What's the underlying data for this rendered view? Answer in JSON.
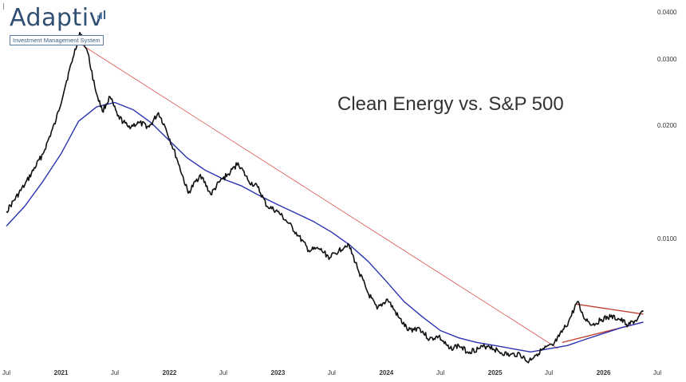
{
  "logo": {
    "word": "Adaptiv",
    "subtitle": "Investment Management System"
  },
  "colors": {
    "price": "#111111",
    "moving_average": "#2b32b2",
    "long_trendline": "#d9534f",
    "triangle": "#c0392b",
    "brand": "#2f4f73"
  },
  "chart_data": {
    "type": "line",
    "title": "Clean Energy vs. S&P 500",
    "y_scale": "log",
    "ylim": [
      0.0047,
      0.041
    ],
    "y_ticks": [
      {
        "value": 0.04,
        "label": "0.0400"
      },
      {
        "value": 0.03,
        "label": "0.0300"
      },
      {
        "value": 0.02,
        "label": "0.0200"
      },
      {
        "value": 0.01,
        "label": "0.0100"
      }
    ],
    "xlim": [
      "2020-07-01",
      "2026-07-01"
    ],
    "x_ticks": [
      {
        "value": "2020-07-01",
        "label": "Jul"
      },
      {
        "value": "2021-01-01",
        "label": "2021"
      },
      {
        "value": "2021-07-01",
        "label": "Jul"
      },
      {
        "value": "2022-01-01",
        "label": "2022"
      },
      {
        "value": "2022-07-01",
        "label": "Jul"
      },
      {
        "value": "2023-01-01",
        "label": "2023"
      },
      {
        "value": "2023-07-01",
        "label": "Jul"
      },
      {
        "value": "2024-01-01",
        "label": "2024"
      },
      {
        "value": "2024-07-01",
        "label": "Jul"
      },
      {
        "value": "2025-01-01",
        "label": "2025"
      },
      {
        "value": "2025-07-01",
        "label": "Jul"
      },
      {
        "value": "2026-01-01",
        "label": "2026"
      },
      {
        "value": "2026-07-01",
        "label": "Jul"
      }
    ],
    "series": [
      {
        "role": "price",
        "x": [
          "2020-07-01",
          "2020-09-01",
          "2020-11-01",
          "2020-12-15",
          "2021-01-20",
          "2021-02-10",
          "2021-03-05",
          "2021-04-01",
          "2021-04-25",
          "2021-05-20",
          "2021-06-15",
          "2021-07-10",
          "2021-08-15",
          "2021-09-20",
          "2021-10-25",
          "2021-11-25",
          "2021-12-20",
          "2022-01-25",
          "2022-03-05",
          "2022-04-15",
          "2022-05-20",
          "2022-06-20",
          "2022-07-25",
          "2022-08-20",
          "2022-09-25",
          "2022-10-25",
          "2022-11-25",
          "2022-12-31",
          "2023-02-05",
          "2023-03-10",
          "2023-04-15",
          "2023-05-20",
          "2023-06-25",
          "2023-07-25",
          "2023-08-25",
          "2023-09-25",
          "2023-10-30",
          "2023-12-01",
          "2024-01-05",
          "2024-02-10",
          "2024-03-15",
          "2024-04-20",
          "2024-05-25",
          "2024-06-25",
          "2024-07-30",
          "2024-09-01",
          "2024-10-01",
          "2024-11-05",
          "2024-12-10",
          "2025-01-15",
          "2025-02-20",
          "2025-03-25",
          "2025-04-20",
          "2025-05-15",
          "2025-06-15",
          "2025-07-15",
          "2025-08-05",
          "2025-09-05",
          "2025-10-05",
          "2025-10-25",
          "2025-11-25",
          "2025-12-25",
          "2026-01-25",
          "2026-02-25",
          "2026-03-25",
          "2026-04-25",
          "2026-05-15"
        ],
        "y": [
          0.0118,
          0.0139,
          0.0168,
          0.0206,
          0.0263,
          0.0302,
          0.0353,
          0.0312,
          0.0252,
          0.0218,
          0.0238,
          0.0212,
          0.0198,
          0.0203,
          0.0198,
          0.0216,
          0.0196,
          0.0164,
          0.0132,
          0.0148,
          0.0131,
          0.0142,
          0.015,
          0.0159,
          0.0142,
          0.0137,
          0.0122,
          0.0118,
          0.011,
          0.0102,
          0.0093,
          0.0094,
          0.0089,
          0.0093,
          0.0097,
          0.0084,
          0.0072,
          0.0065,
          0.0069,
          0.0062,
          0.0057,
          0.0058,
          0.0054,
          0.0055,
          0.0051,
          0.0052,
          0.005,
          0.0051,
          0.0052,
          0.005,
          0.0049,
          0.00495,
          0.0047,
          0.0049,
          0.0051,
          0.0052,
          0.0055,
          0.006,
          0.0068,
          0.0062,
          0.0059,
          0.0061,
          0.0062,
          0.0061,
          0.0059,
          0.0061,
          0.0064
        ]
      },
      {
        "role": "moving_average",
        "x": [
          "2020-07-01",
          "2020-09-01",
          "2020-11-01",
          "2021-01-01",
          "2021-03-01",
          "2021-05-01",
          "2021-07-01",
          "2021-09-01",
          "2021-11-01",
          "2022-01-01",
          "2022-03-01",
          "2022-05-01",
          "2022-07-01",
          "2022-09-01",
          "2022-11-01",
          "2023-01-01",
          "2023-03-01",
          "2023-05-01",
          "2023-07-01",
          "2023-09-01",
          "2023-11-01",
          "2024-01-01",
          "2024-03-01",
          "2024-05-01",
          "2024-07-01",
          "2024-09-01",
          "2024-11-01",
          "2025-01-01",
          "2025-03-01",
          "2025-05-01",
          "2025-07-01",
          "2025-09-01",
          "2025-11-01",
          "2026-01-01",
          "2026-03-01",
          "2026-05-15"
        ],
        "y": [
          0.0108,
          0.0122,
          0.0142,
          0.0168,
          0.0205,
          0.0224,
          0.023,
          0.022,
          0.0203,
          0.0182,
          0.0164,
          0.0152,
          0.0144,
          0.0138,
          0.013,
          0.0123,
          0.0117,
          0.0111,
          0.0104,
          0.0096,
          0.0087,
          0.0077,
          0.0068,
          0.0062,
          0.0057,
          0.00545,
          0.0053,
          0.0052,
          0.0051,
          0.005,
          0.0051,
          0.0052,
          0.0054,
          0.0056,
          0.0058,
          0.006
        ]
      },
      {
        "role": "long_trendline",
        "x": [
          "2021-01-25",
          "2025-08-01"
        ],
        "y": [
          0.0345,
          0.0051
        ]
      },
      {
        "role": "triangle_upper",
        "x": [
          "2025-10-01",
          "2026-05-15"
        ],
        "y": [
          0.0067,
          0.0063
        ]
      },
      {
        "role": "triangle_lower",
        "x": [
          "2025-08-15",
          "2026-05-15"
        ],
        "y": [
          0.0053,
          0.006
        ]
      }
    ]
  }
}
